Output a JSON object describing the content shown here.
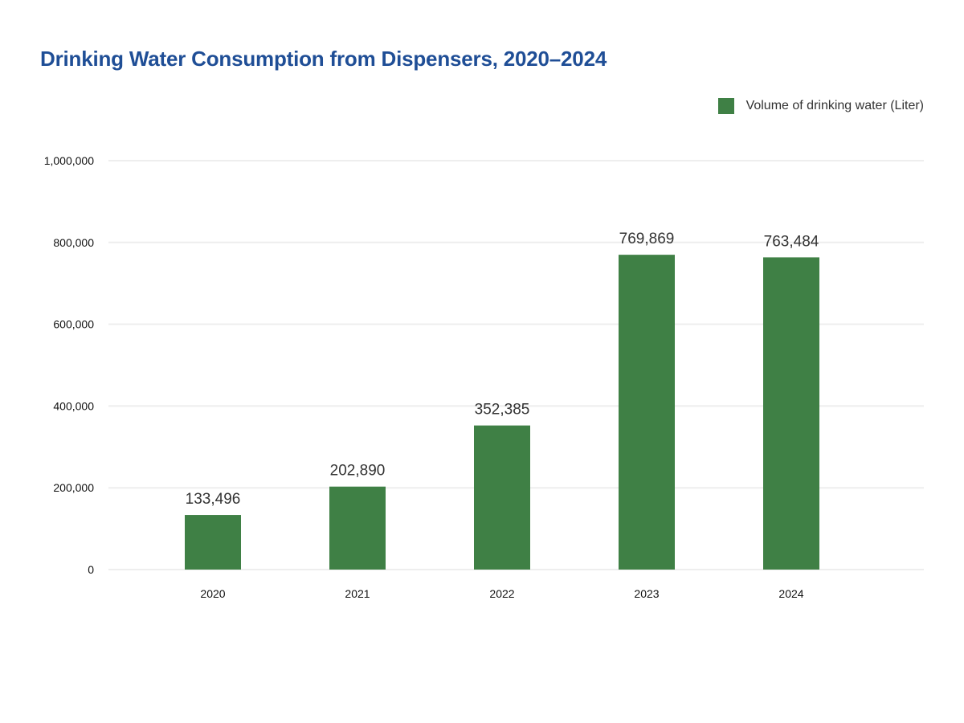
{
  "colors": {
    "bar": "#3f8045",
    "title": "#1f4e96",
    "grid": "#eeeeee",
    "label": "#333333"
  },
  "chart_data": {
    "type": "bar",
    "title": "Drinking Water Consumption from Dispensers, 2020–2024",
    "xlabel": "",
    "ylabel": "",
    "categories": [
      "2020",
      "2021",
      "2022",
      "2023",
      "2024"
    ],
    "series": [
      {
        "name": "Volume of drinking water (Liter)",
        "values": [
          133496,
          202890,
          352385,
          769869,
          763484
        ]
      }
    ],
    "data_labels": [
      "133,496",
      "202,890",
      "352,385",
      "769,869",
      "763,484"
    ],
    "y_ticks": [
      0,
      200000,
      400000,
      600000,
      800000,
      1000000
    ],
    "y_tick_labels": [
      "0",
      "200,000",
      "400,000",
      "600,000",
      "800,000",
      "1,000,000"
    ],
    "ylim": [
      0,
      1000000
    ],
    "grid": true,
    "legend_position": "top-right"
  }
}
